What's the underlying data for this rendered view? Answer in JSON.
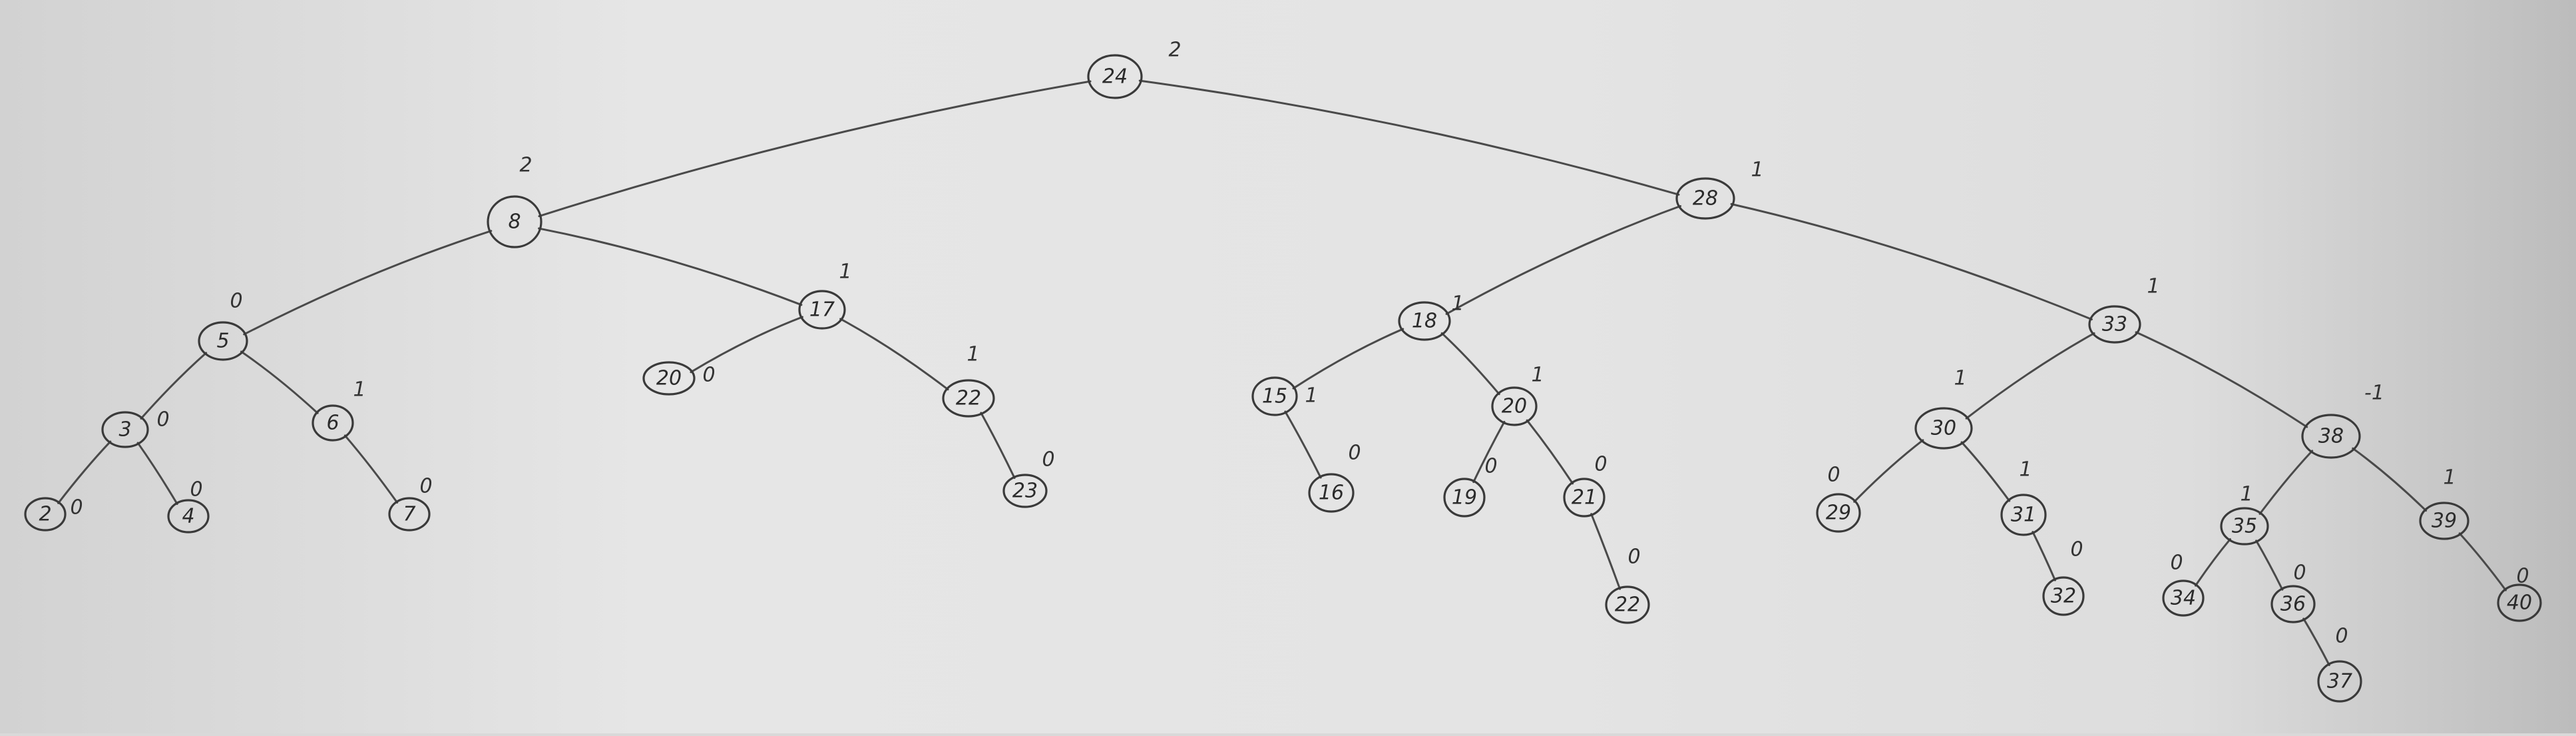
{
  "tree": {
    "nodes": [
      {
        "id": "n24",
        "key": "24",
        "balance": "2"
      },
      {
        "id": "n8",
        "key": "8",
        "balance": "2"
      },
      {
        "id": "n28",
        "key": "28",
        "balance": "1"
      },
      {
        "id": "n5",
        "key": "5",
        "balance": "0"
      },
      {
        "id": "n17",
        "key": "17",
        "balance": "1"
      },
      {
        "id": "n3",
        "key": "3",
        "balance": "0"
      },
      {
        "id": "n6",
        "key": "6",
        "balance": "1"
      },
      {
        "id": "n2",
        "key": "2",
        "balance": "0"
      },
      {
        "id": "n4",
        "key": "4",
        "balance": "0"
      },
      {
        "id": "n7",
        "key": "7",
        "balance": "0"
      },
      {
        "id": "n20a",
        "key": "20",
        "balance": "0"
      },
      {
        "id": "n22",
        "key": "22",
        "balance": "1"
      },
      {
        "id": "n23",
        "key": "23",
        "balance": "0"
      },
      {
        "id": "n18",
        "key": "18",
        "balance": "1"
      },
      {
        "id": "n33",
        "key": "33",
        "balance": "1"
      },
      {
        "id": "n15",
        "key": "15",
        "balance": "1"
      },
      {
        "id": "n16",
        "key": "16",
        "balance": "0"
      },
      {
        "id": "n20",
        "key": "20",
        "balance": "1"
      },
      {
        "id": "n19",
        "key": "19",
        "balance": "0"
      },
      {
        "id": "n21",
        "key": "21",
        "balance": "0"
      },
      {
        "id": "n22b",
        "key": "22",
        "balance": "0"
      },
      {
        "id": "n30",
        "key": "30",
        "balance": "1"
      },
      {
        "id": "n29",
        "key": "29",
        "balance": "0"
      },
      {
        "id": "n31",
        "key": "31",
        "balance": "1"
      },
      {
        "id": "n32",
        "key": "32",
        "balance": "0"
      },
      {
        "id": "n38",
        "key": "38",
        "balance": "-1"
      },
      {
        "id": "n35",
        "key": "35",
        "balance": "1"
      },
      {
        "id": "n34",
        "key": "34",
        "balance": "0"
      },
      {
        "id": "n36",
        "key": "36",
        "balance": "0"
      },
      {
        "id": "n37",
        "key": "37",
        "balance": "0"
      },
      {
        "id": "n39",
        "key": "39",
        "balance": "1"
      },
      {
        "id": "n40",
        "key": "40",
        "balance": "0"
      }
    ],
    "edges": [
      [
        "n24",
        "n8"
      ],
      [
        "n24",
        "n28"
      ],
      [
        "n8",
        "n5"
      ],
      [
        "n8",
        "n17"
      ],
      [
        "n5",
        "n3"
      ],
      [
        "n5",
        "n6"
      ],
      [
        "n3",
        "n2"
      ],
      [
        "n3",
        "n4"
      ],
      [
        "n6",
        "n7"
      ],
      [
        "n17",
        "n20a"
      ],
      [
        "n17",
        "n22"
      ],
      [
        "n22",
        "n23"
      ],
      [
        "n28",
        "n18"
      ],
      [
        "n28",
        "n33"
      ],
      [
        "n18",
        "n15"
      ],
      [
        "n18",
        "n20"
      ],
      [
        "n15",
        "n16"
      ],
      [
        "n20",
        "n19"
      ],
      [
        "n20",
        "n21"
      ],
      [
        "n21",
        "n22b"
      ],
      [
        "n33",
        "n30"
      ],
      [
        "n33",
        "n38"
      ],
      [
        "n30",
        "n29"
      ],
      [
        "n30",
        "n31"
      ],
      [
        "n31",
        "n32"
      ],
      [
        "n38",
        "n35"
      ],
      [
        "n38",
        "n39"
      ],
      [
        "n35",
        "n34"
      ],
      [
        "n35",
        "n36"
      ],
      [
        "n36",
        "n37"
      ],
      [
        "n39",
        "n40"
      ]
    ]
  }
}
